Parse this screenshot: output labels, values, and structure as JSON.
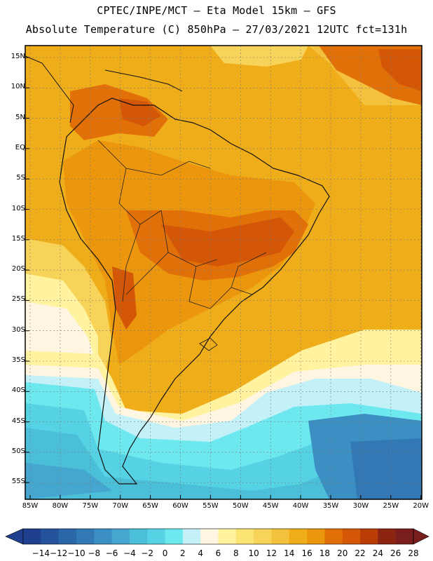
{
  "header": {
    "line1": "CPTEC/INPE/MCT –  Eta Model 15km – GFS",
    "line2": "Absolute Temperature (C) 850hPa – 27/03/2021 12UTC fct=131h"
  },
  "map": {
    "lat_labels": [
      "15N",
      "10N",
      "5N",
      "EQ",
      "5S",
      "10S",
      "15S",
      "20S",
      "25S",
      "30S",
      "35S",
      "40S",
      "45S",
      "50S",
      "55S"
    ],
    "lon_labels": [
      "85W",
      "80W",
      "75W",
      "70W",
      "65W",
      "60W",
      "55W",
      "50W",
      "45W",
      "40W",
      "35W",
      "30W",
      "25W",
      "20W"
    ]
  },
  "legend": {
    "labels": [
      "-14",
      "-12",
      "-10",
      "-8",
      "-6",
      "-4",
      "-2",
      "0",
      "2",
      "4",
      "6",
      "8",
      "10",
      "12",
      "14",
      "16",
      "18",
      "20",
      "22",
      "24",
      "26",
      "28"
    ],
    "colors": [
      "#1f3f8f",
      "#24539b",
      "#2a67a8",
      "#3278b5",
      "#3c8fc2",
      "#45a6cf",
      "#4bbfd8",
      "#55d3e4",
      "#6ee8ef",
      "#c4f0f7",
      "#fff6e1",
      "#fff3a0",
      "#fbe472",
      "#f7d35a",
      "#f3c13c",
      "#efad1a",
      "#eb960c",
      "#e27008",
      "#d35706",
      "#bb3d06",
      "#8c2412",
      "#7a1d1d"
    ]
  }
}
